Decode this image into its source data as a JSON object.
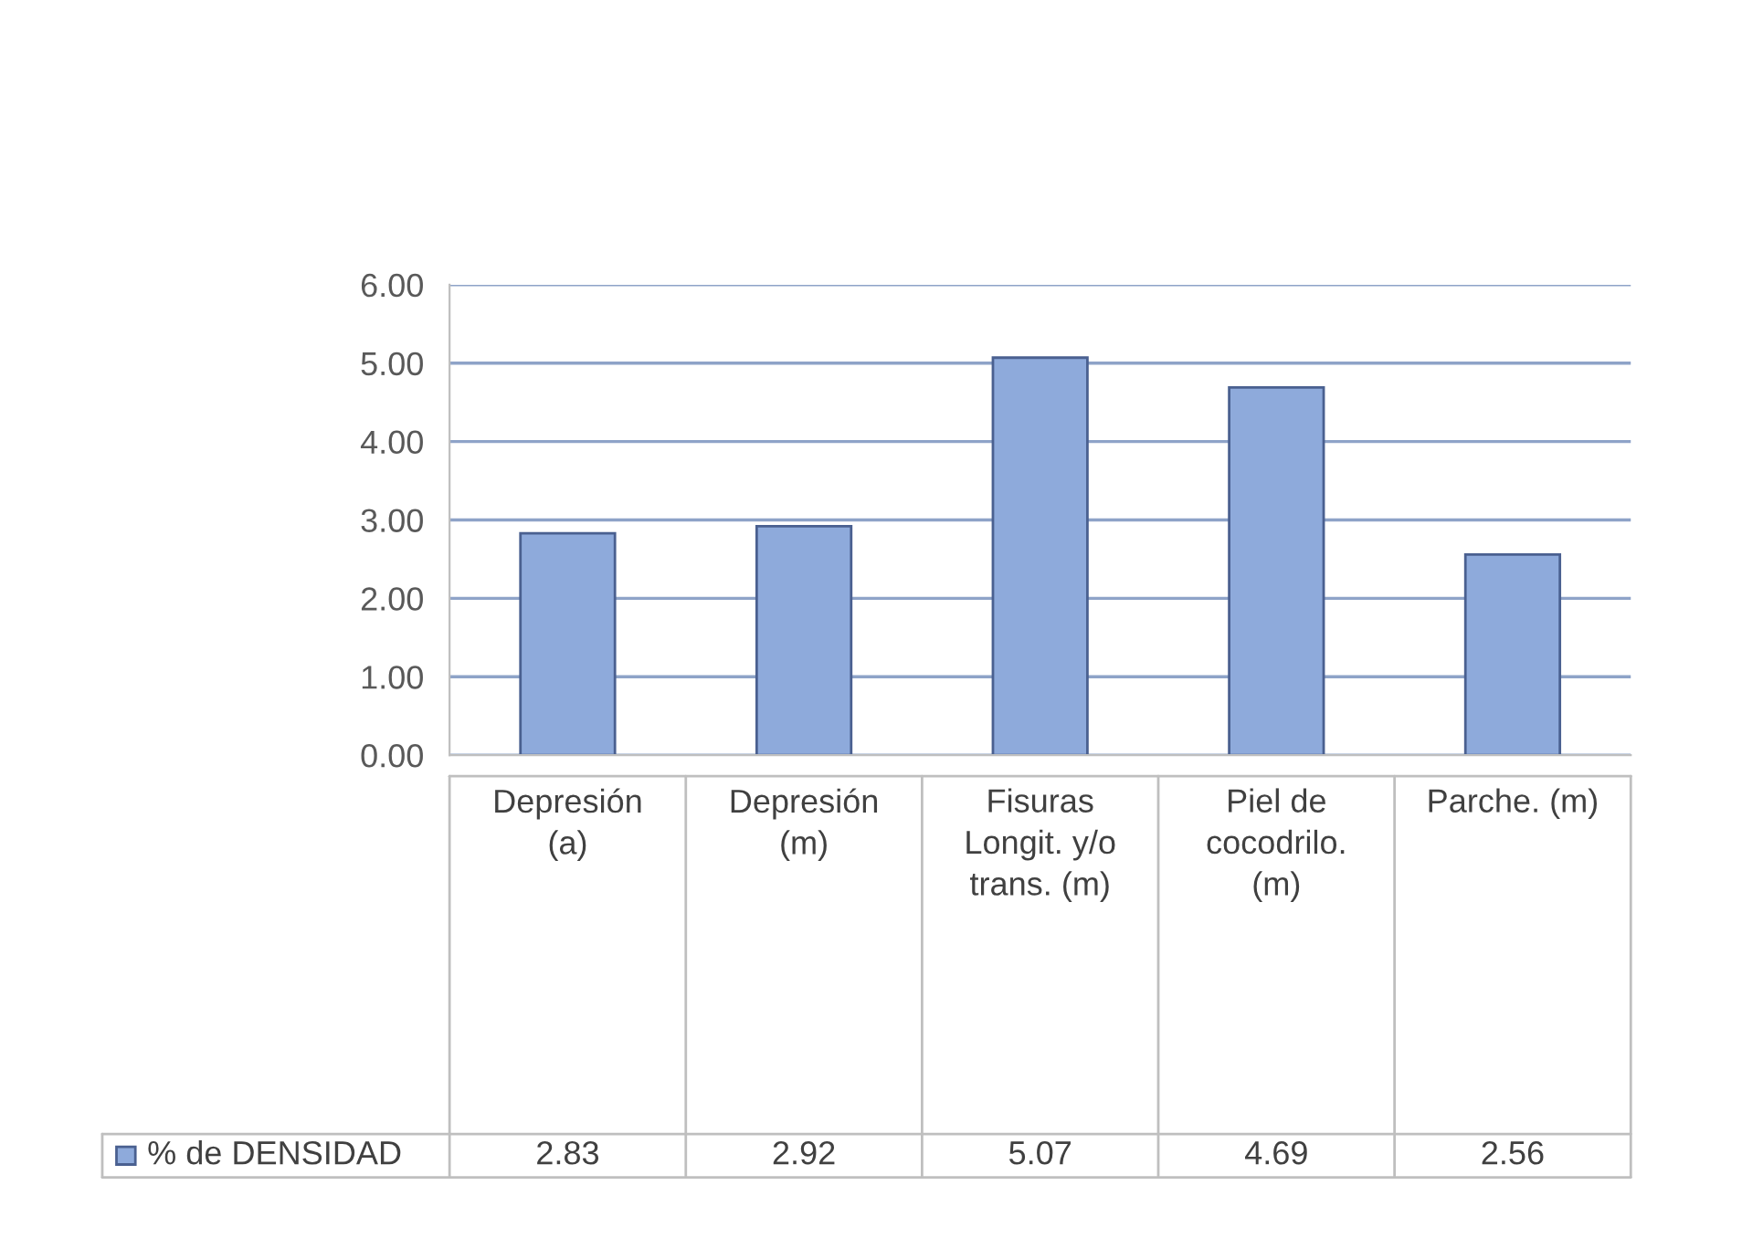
{
  "chart_data": {
    "type": "bar",
    "categories": [
      "Depresión (a)",
      "Depresión (m)",
      "Fisuras Longit. y/o  trans. (m)",
      "Piel de cocodrilo. (m)",
      "Parche. (m)"
    ],
    "series": [
      {
        "name": "% de DENSIDAD",
        "color": "#8eaadb",
        "values": [
          2.83,
          2.92,
          5.07,
          4.69,
          2.56
        ]
      }
    ],
    "ylim": [
      0,
      6
    ],
    "yticks": [
      {
        "value": 0,
        "label": "0.00"
      },
      {
        "value": 1,
        "label": "1.00"
      },
      {
        "value": 2,
        "label": "2.00"
      },
      {
        "value": 3,
        "label": "3.00"
      },
      {
        "value": 4,
        "label": "4.00"
      },
      {
        "value": 5,
        "label": "5.00"
      },
      {
        "value": 6,
        "label": "6.00"
      }
    ],
    "grid": "y",
    "legend": "bottom",
    "data_labels": true
  }
}
